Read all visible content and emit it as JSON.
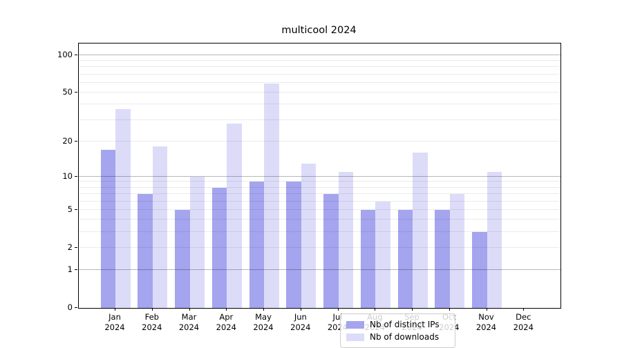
{
  "chart_data": {
    "type": "bar",
    "title": "multicool 2024",
    "scale": "log1p",
    "categories": [
      "Jan",
      "Feb",
      "Mar",
      "Apr",
      "May",
      "Jun",
      "Jul",
      "Aug",
      "Sep",
      "Oct",
      "Nov",
      "Dec"
    ],
    "category_year": "2024",
    "series": [
      {
        "name": "Nb of distinct IPs",
        "color": "#a4a4ef",
        "values": [
          17,
          7,
          5,
          8,
          9,
          9,
          7,
          5,
          5,
          5,
          3,
          0
        ]
      },
      {
        "name": "Nb of downloads",
        "color": "#dcdcf9",
        "values": [
          37,
          18,
          10,
          28,
          59,
          13,
          11,
          6,
          16,
          7,
          11,
          0
        ]
      }
    ],
    "yticks": [
      0,
      1,
      2,
      5,
      10,
      20,
      50,
      100
    ],
    "major_gridlines": [
      1,
      10,
      100
    ],
    "minor_gridlines": [
      3,
      4,
      6,
      7,
      8,
      9,
      30,
      40,
      60,
      70,
      80,
      90
    ],
    "ylim": [
      0,
      124
    ],
    "xlabel": "",
    "ylabel": "",
    "grid": true,
    "legend_position": "lower center"
  }
}
